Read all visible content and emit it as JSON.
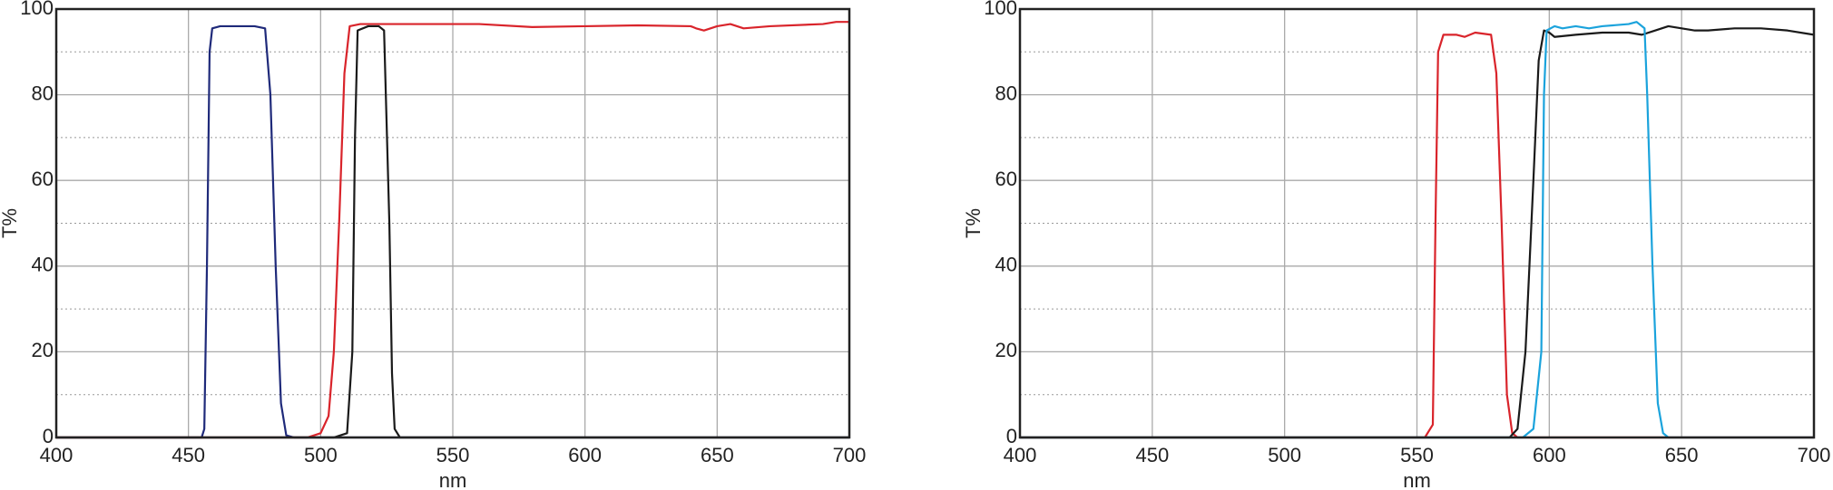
{
  "chart_data": [
    {
      "type": "line",
      "xlabel": "nm",
      "ylabel": "T%",
      "xlim": [
        400,
        700
      ],
      "xticks": [
        400,
        450,
        500,
        550,
        600,
        650,
        700
      ],
      "ylim": [
        0,
        100
      ],
      "yticks": [
        0,
        20,
        40,
        60,
        80,
        100
      ],
      "yminor": [
        10,
        30,
        50,
        70,
        90
      ],
      "grid": true,
      "series": [
        {
          "color": "#1f2a7a",
          "x": [
            400,
            455,
            456,
            457,
            458,
            459,
            462,
            465,
            470,
            475,
            479,
            481,
            483,
            485,
            487,
            490,
            700
          ],
          "values": [
            0,
            0,
            2,
            40,
            90,
            95.5,
            96,
            96,
            96,
            96,
            95.5,
            80,
            40,
            8,
            0.5,
            0,
            0
          ]
        },
        {
          "color": "#d9242b",
          "x": [
            400,
            495,
            500,
            503,
            505,
            507,
            509,
            511,
            515,
            530,
            550,
            560,
            580,
            600,
            620,
            640,
            642,
            645,
            650,
            655,
            660,
            670,
            690,
            695,
            700
          ],
          "values": [
            0,
            0,
            1,
            5,
            20,
            50,
            85,
            96,
            96.5,
            96.5,
            96.5,
            96.5,
            95.8,
            96,
            96.2,
            96,
            95.5,
            95,
            96,
            96.5,
            95.5,
            96,
            96.5,
            97,
            97
          ]
        },
        {
          "color": "#1a1a1a",
          "x": [
            400,
            505,
            510,
            512,
            513,
            514,
            518,
            522,
            524,
            526,
            527,
            528,
            530,
            700
          ],
          "values": [
            0,
            0,
            1,
            20,
            70,
            95,
            96,
            96,
            95,
            50,
            15,
            2,
            0,
            0
          ]
        }
      ]
    },
    {
      "type": "line",
      "xlabel": "nm",
      "ylabel": "T%",
      "xlim": [
        400,
        700
      ],
      "xticks": [
        400,
        450,
        500,
        550,
        600,
        650,
        700
      ],
      "ylim": [
        0,
        100
      ],
      "yticks": [
        0,
        20,
        40,
        60,
        80,
        100
      ],
      "yminor": [
        10,
        30,
        50,
        70,
        90
      ],
      "grid": true,
      "series": [
        {
          "color": "#d9242b",
          "x": [
            400,
            553,
            556,
            557,
            558,
            560,
            565,
            568,
            572,
            578,
            580,
            582,
            584,
            586,
            588,
            700
          ],
          "values": [
            0,
            0,
            3,
            50,
            90,
            94,
            94,
            93.5,
            94.5,
            94,
            85,
            50,
            10,
            1,
            0,
            0
          ]
        },
        {
          "color": "#1a1a1a",
          "x": [
            400,
            585,
            588,
            591,
            594,
            596,
            598,
            600,
            602,
            610,
            620,
            630,
            635,
            640,
            645,
            650,
            655,
            660,
            670,
            680,
            690,
            700
          ],
          "values": [
            0,
            0,
            2,
            20,
            60,
            88,
            95,
            94.5,
            93.5,
            94,
            94.5,
            94.5,
            94,
            95,
            96,
            95.5,
            95,
            95,
            95.5,
            95.5,
            95,
            94
          ]
        },
        {
          "color": "#1ba3dc",
          "x": [
            400,
            590,
            594,
            597,
            598,
            599,
            602,
            605,
            610,
            615,
            620,
            630,
            633,
            636,
            637,
            639,
            641,
            643,
            645,
            700
          ],
          "values": [
            0,
            0,
            2,
            20,
            80,
            95,
            96,
            95.5,
            96,
            95.5,
            96,
            96.5,
            97,
            95.5,
            80,
            40,
            8,
            1,
            0,
            0
          ]
        }
      ]
    }
  ]
}
